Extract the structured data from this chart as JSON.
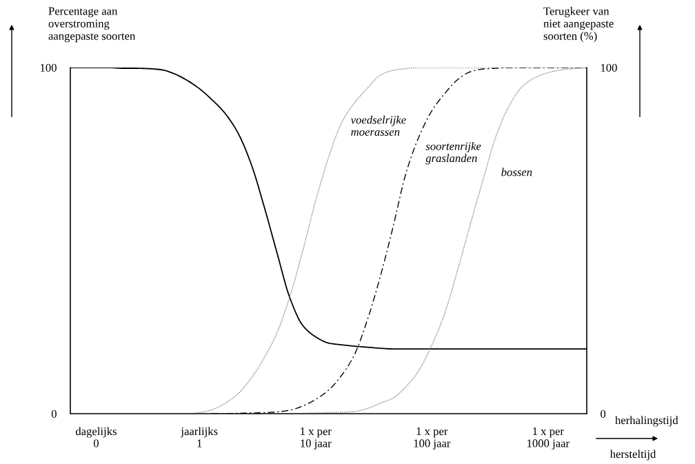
{
  "chart_data": {
    "type": "line",
    "ylabel": "Percentage aan\noverstroming\naangepaste soorten",
    "y2label": "Terugkeer van\nniet aangepaste\nsoorten (%)",
    "xlabel": "herhalingstijd",
    "categories": [
      null,
      null,
      "dagelijks\n0",
      null,
      null,
      null,
      null,
      null,
      null,
      null,
      "jaarlijks\n1",
      null,
      null,
      null,
      null,
      null,
      null,
      null,
      null,
      "1 x per\n10 jaar",
      null,
      null,
      null,
      null,
      null,
      null,
      null,
      null,
      "1 x per\n100 jaar",
      null,
      null,
      null,
      null,
      null,
      null,
      null,
      null,
      "1 x per\n1000 jaar",
      null,
      null,
      null
    ],
    "ylim": [
      0,
      100
    ],
    "yticks": [
      0,
      100
    ],
    "y2lim": [
      0,
      100
    ],
    "y2ticks": [
      0,
      100
    ],
    "grid": false,
    "legend": false,
    "series": [
      {
        "color": "#000000",
        "line_style": "solid",
        "axis": "y",
        "values": [
          100,
          100,
          100,
          100,
          99.8,
          99.8,
          99.7,
          99.4,
          98.3,
          96.4,
          93.9,
          90.6,
          86.7,
          81,
          72.2,
          60,
          46.6,
          33.5,
          25.5,
          22.2,
          20.4,
          19.9,
          19.5,
          19.2,
          18.9,
          18.7,
          18.7,
          18.7,
          18.7,
          18.7,
          18.7,
          18.7,
          18.7,
          18.7,
          18.7,
          18.7,
          18.7,
          18.7,
          18.7,
          18.7,
          18.7
        ]
      },
      {
        "color": "#808080",
        "line_style": "dotted",
        "axis": "y2",
        "values": [
          null,
          null,
          null,
          null,
          0,
          0,
          0,
          0,
          0,
          0,
          0.3,
          1.2,
          3,
          5.8,
          10.2,
          16,
          23.3,
          33.8,
          47,
          61.5,
          74,
          84,
          89.8,
          94,
          97.8,
          99.2,
          99.7,
          100,
          100,
          100,
          100,
          100,
          100,
          100,
          100,
          100,
          100,
          100,
          100,
          100,
          100
        ]
      },
      {
        "color": "#000000",
        "line_style": "dashed",
        "axis": "y2",
        "values": [
          null,
          null,
          null,
          null,
          null,
          null,
          null,
          null,
          null,
          null,
          null,
          0,
          0,
          0.1,
          0.2,
          0.3,
          0.5,
          1,
          2.2,
          4.1,
          6.8,
          11,
          17,
          27,
          39.5,
          54,
          69.5,
          80,
          87.5,
          92.5,
          96.5,
          98.8,
          99.6,
          99.8,
          100,
          100,
          100,
          100,
          100,
          100,
          100
        ]
      },
      {
        "color": "#808080",
        "line_style": "dotted",
        "axis": "y2",
        "values": [
          null,
          null,
          null,
          null,
          null,
          null,
          null,
          null,
          null,
          null,
          null,
          null,
          null,
          null,
          null,
          null,
          0,
          0,
          0.1,
          0.2,
          0.3,
          0.4,
          0.6,
          1.5,
          3,
          4.5,
          7.8,
          12.5,
          19.8,
          29,
          41.5,
          55,
          68,
          80.5,
          89,
          94.5,
          97.1,
          98.5,
          99.3,
          99.7,
          100
        ]
      }
    ],
    "annotations": [
      "voedselrijke\nmoerassen",
      "soortenrijke\ngraslanden",
      "bossen",
      "hersteltijd"
    ]
  }
}
